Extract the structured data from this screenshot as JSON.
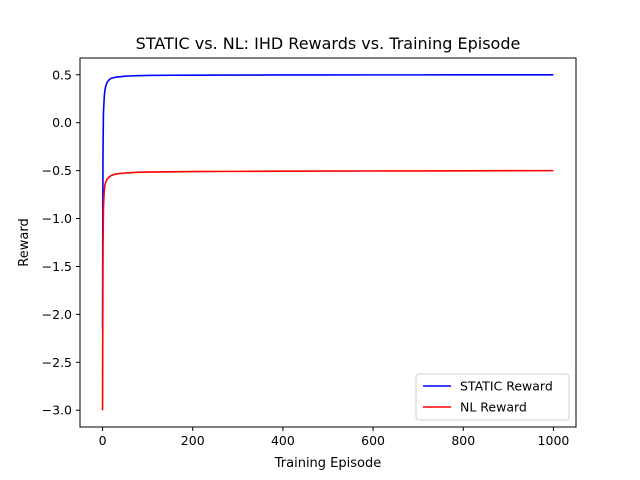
{
  "chart_data": {
    "type": "line",
    "title": "STATIC vs. NL: IHD Rewards vs. Training Episode",
    "xlabel": "Training Episode",
    "ylabel": "Reward",
    "xlim": [
      -50,
      1050
    ],
    "ylim": [
      -3.175,
      0.675
    ],
    "xticks": [
      0,
      200,
      400,
      600,
      800,
      1000
    ],
    "yticks": [
      0.5,
      0.0,
      -0.5,
      -1.0,
      -1.5,
      -2.0,
      -2.5,
      -3.0
    ],
    "xtick_labels": [
      "0",
      "200",
      "400",
      "600",
      "800",
      "1000"
    ],
    "ytick_labels": [
      "0.5",
      "0.0",
      "−0.5",
      "−1.0",
      "−1.5",
      "−2.0",
      "−2.5",
      "−3.0"
    ],
    "grid": false,
    "legend_position": "lower-right",
    "series": [
      {
        "name": "STATIC Reward",
        "color": "#0000ff",
        "x": [
          0,
          1,
          2,
          3,
          4,
          5,
          7,
          10,
          15,
          20,
          30,
          50,
          75,
          100,
          150,
          200,
          300,
          400,
          500,
          600,
          700,
          800,
          900,
          1000
        ],
        "y": [
          -2.15,
          -0.3,
          0.1,
          0.2,
          0.28,
          0.33,
          0.38,
          0.42,
          0.45,
          0.465,
          0.475,
          0.485,
          0.49,
          0.493,
          0.495,
          0.496,
          0.497,
          0.498,
          0.4985,
          0.499,
          0.499,
          0.4995,
          0.4995,
          0.5
        ]
      },
      {
        "name": "NL Reward",
        "color": "#ff0000",
        "x": [
          0,
          1,
          2,
          3,
          4,
          5,
          7,
          10,
          15,
          20,
          30,
          50,
          75,
          100,
          150,
          200,
          300,
          400,
          500,
          600,
          700,
          800,
          900,
          1000
        ],
        "y": [
          -3.0,
          -1.3,
          -0.9,
          -0.78,
          -0.7,
          -0.66,
          -0.62,
          -0.59,
          -0.565,
          -0.55,
          -0.535,
          -0.525,
          -0.518,
          -0.515,
          -0.512,
          -0.51,
          -0.508,
          -0.506,
          -0.505,
          -0.504,
          -0.503,
          -0.502,
          -0.501,
          -0.5
        ]
      }
    ]
  }
}
